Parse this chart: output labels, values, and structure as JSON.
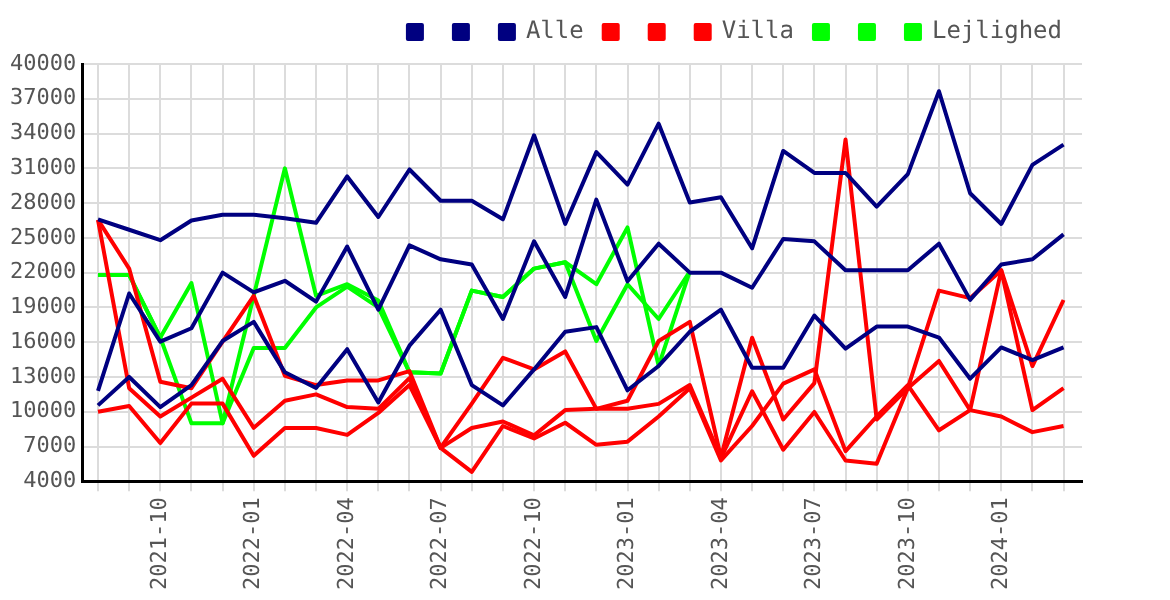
{
  "chart_data": {
    "type": "line",
    "x": [
      "2021-08",
      "2021-09",
      "2021-10",
      "2021-11",
      "2021-12",
      "2022-01",
      "2022-02",
      "2022-03",
      "2022-04",
      "2022-05",
      "2022-06",
      "2022-07",
      "2022-08",
      "2022-09",
      "2022-10",
      "2022-11",
      "2022-12",
      "2023-01",
      "2023-02",
      "2023-03",
      "2023-04",
      "2023-05",
      "2023-06",
      "2023-07",
      "2023-08",
      "2023-09",
      "2023-10",
      "2023-11",
      "2023-12",
      "2024-01",
      "2024-02",
      "2024-03"
    ],
    "series": [
      {
        "color": "#000080",
        "values": [
          26600,
          25700,
          24800,
          26500,
          27000,
          27000,
          26700,
          26300,
          30300,
          26800,
          30900,
          28200,
          28200,
          26600,
          33850,
          26200,
          32400,
          29600,
          34850,
          28050,
          28500,
          24100,
          32500,
          30600,
          30600,
          27700,
          30500,
          37650,
          28850,
          26200,
          31300,
          33050
        ]
      },
      {
        "color": "#000080",
        "values": [
          11800,
          20200,
          16050,
          17200,
          22000,
          20300,
          21300,
          19500,
          24250,
          18800,
          24350,
          23150,
          22700,
          18000,
          24700,
          19900,
          28300,
          21250,
          24500,
          22000,
          22000,
          20700,
          24900,
          24700,
          22200,
          22200,
          22200,
          24500,
          19650,
          22700,
          23150,
          25300
        ]
      },
      {
        "name": "Alle",
        "color": "#000080",
        "values": [
          10550,
          13000,
          10400,
          12300,
          16100,
          17750,
          13400,
          12050,
          15400,
          10800,
          15700,
          18800,
          12300,
          10550,
          13650,
          16900,
          17300,
          11850,
          13950,
          16900,
          18800,
          13800,
          13800,
          18300,
          15450,
          17350,
          17350,
          16400,
          12850,
          15550,
          14450,
          15550
        ]
      },
      {
        "color": "#ff0000",
        "values": [
          26550,
          22350,
          12580,
          12030,
          16050,
          20000,
          13100,
          12300,
          12700,
          12700,
          13500,
          6900,
          10700,
          14650,
          13650,
          15200,
          10250,
          10950,
          16100,
          17750,
          6070,
          16380,
          9330,
          12470,
          33480,
          9330,
          12030,
          14380,
          10140,
          22200,
          10140,
          12030
        ]
      },
      {
        "color": "#ff0000",
        "values": [
          26550,
          12030,
          9590,
          11220,
          12850,
          8610,
          10950,
          11500,
          10400,
          10250,
          12900,
          6880,
          8600,
          9160,
          7960,
          10140,
          10250,
          10250,
          10680,
          12300,
          6000,
          11770,
          6720,
          9980,
          5790,
          5520,
          12030,
          20450,
          19800,
          22200,
          13940,
          19640
        ]
      },
      {
        "name": "Villa",
        "color": "#ff0000",
        "values": [
          10000,
          10500,
          7300,
          10700,
          10700,
          6200,
          8600,
          8600,
          8000,
          9900,
          12300,
          6880,
          4810,
          8770,
          7690,
          9050,
          7150,
          7420,
          9590,
          12030,
          5800,
          8770,
          12420,
          13660,
          6600,
          9590,
          12300,
          8400,
          10140,
          9590,
          8240,
          8770
        ]
      },
      {
        "color": "#00ff00",
        "values": [
          21800,
          21800,
          16400,
          21100,
          9000,
          20000,
          31000,
          20000,
          21000,
          19600,
          13400,
          13300,
          20450,
          19900,
          22350,
          22900,
          21000,
          25900,
          13950,
          22100,
          null,
          null,
          null,
          null,
          null,
          null,
          null,
          null,
          null,
          null,
          null,
          null
        ]
      },
      {
        "color": "#00ff00",
        "values": [
          21800,
          21800,
          16400,
          9000,
          9000,
          15500,
          15500,
          19000,
          20800,
          19000,
          null,
          null,
          null,
          null,
          null,
          null,
          null,
          null,
          null,
          null,
          null,
          null,
          null,
          null,
          null,
          null,
          null,
          null,
          null,
          null,
          null,
          null
        ]
      },
      {
        "name": "Lejlighed",
        "color": "#00ff00",
        "values": [
          null,
          null,
          null,
          null,
          null,
          null,
          null,
          null,
          null,
          19000,
          13400,
          13300,
          20450,
          19900,
          22350,
          22900,
          16100,
          21000,
          18000,
          22100,
          null,
          null,
          null,
          null,
          null,
          null,
          null,
          null,
          null,
          null,
          null,
          null
        ]
      }
    ],
    "xlim": [
      "2021-07-16",
      "2024-03-19"
    ],
    "xticks": [
      {
        "value": "2021-08",
        "label": null
      },
      {
        "value": "2021-09",
        "label": null
      },
      "2021-10",
      {
        "value": "2021-11",
        "label": null
      },
      {
        "value": "2021-12",
        "label": null
      },
      "2022-01",
      {
        "value": "2022-02",
        "label": null
      },
      {
        "value": "2022-03",
        "label": null
      },
      "2022-04",
      {
        "value": "2022-05",
        "label": null
      },
      {
        "value": "2022-06",
        "label": null
      },
      "2022-07",
      {
        "value": "2022-08",
        "label": null
      },
      {
        "value": "2022-09",
        "label": null
      },
      "2022-10",
      {
        "value": "2022-11",
        "label": null
      },
      {
        "value": "2022-12",
        "label": null
      },
      "2023-01",
      {
        "value": "2023-02",
        "label": null
      },
      {
        "value": "2023-03",
        "label": null
      },
      "2023-04",
      {
        "value": "2023-05",
        "label": null
      },
      {
        "value": "2023-06",
        "label": null
      },
      "2023-07",
      {
        "value": "2023-08",
        "label": null
      },
      {
        "value": "2023-09",
        "label": null
      },
      "2023-10",
      {
        "value": "2023-11",
        "label": null
      },
      {
        "value": "2023-12",
        "label": null
      },
      "2024-01",
      {
        "value": "2024-02",
        "label": null
      },
      {
        "value": "2024-03",
        "label": null
      }
    ],
    "ylim": [
      4000,
      40000
    ],
    "yticks": [
      4000,
      7000,
      10000,
      13000,
      16000,
      19000,
      22000,
      25000,
      28000,
      31000,
      34000,
      37000,
      40000
    ],
    "grid": true,
    "legend": "top right",
    "marker": "none",
    "line_style": "solid"
  }
}
